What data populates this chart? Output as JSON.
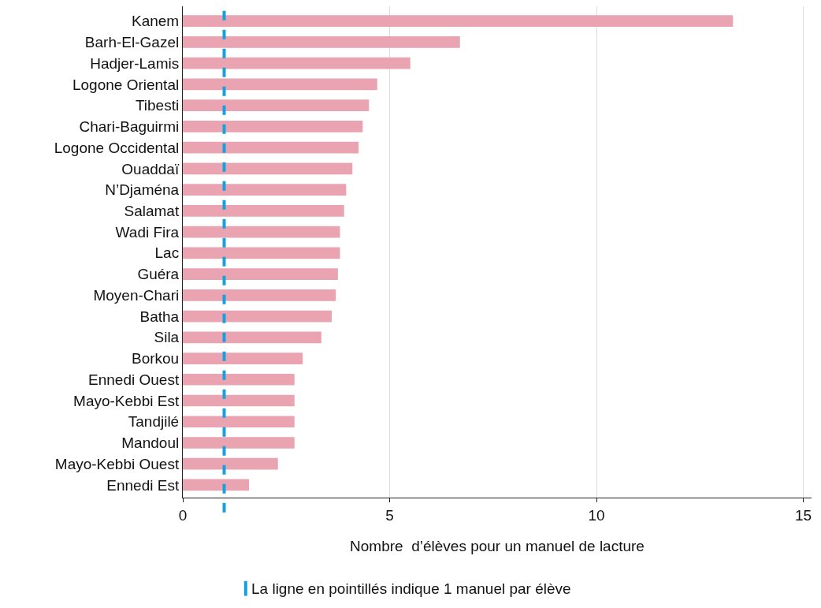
{
  "chart_data": {
    "type": "bar",
    "orientation": "horizontal",
    "xlabel": "Nombre  d’élèves pour un manuel de lacture",
    "categories": [
      "Kanem",
      "Barh-El-Gazel",
      "Hadjer-Lamis",
      "Logone Oriental",
      "Tibesti",
      "Chari-Baguirmi",
      "Logone Occidental",
      "Ouaddaï",
      "N’Djaména",
      "Salamat",
      "Wadi Fira",
      "Lac",
      "Guéra",
      "Moyen-Chari",
      "Batha",
      "Sila",
      "Borkou",
      "Ennedi Ouest",
      "Mayo-Kebbi Est",
      "Tandjilé",
      "Mandoul",
      "Mayo-Kebbi Ouest",
      "Ennedi Est"
    ],
    "values": [
      13.3,
      6.7,
      5.5,
      4.7,
      4.5,
      4.35,
      4.25,
      4.1,
      3.95,
      3.9,
      3.8,
      3.8,
      3.75,
      3.7,
      3.6,
      3.35,
      2.9,
      2.7,
      2.7,
      2.7,
      2.7,
      2.3,
      1.6
    ],
    "color": "#eaa3b0",
    "xlim": [
      0,
      15.2
    ],
    "xticks": [
      0,
      5,
      10,
      15
    ],
    "grid": "x",
    "ref_lines": [
      {
        "axis": "x",
        "value": 1,
        "label": "La ligne en pointillés indique 1 manuel par élève",
        "color": "#1a9fdb",
        "line_style": "dashed"
      }
    ]
  }
}
